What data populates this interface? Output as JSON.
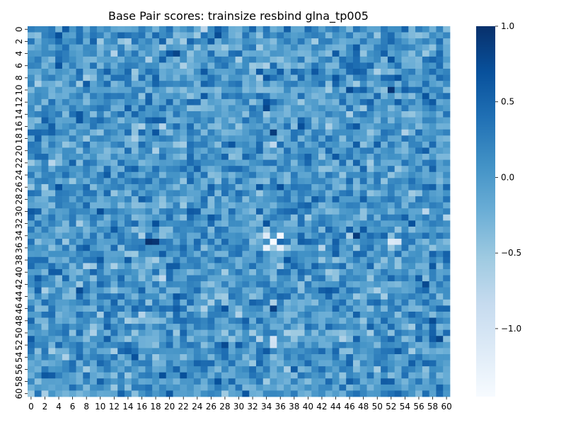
{
  "chart_data": {
    "type": "heatmap",
    "title": "Base Pair scores: trainsize resbind glna_tp005",
    "n": 61,
    "x_tick_labels": [
      "0",
      "2",
      "4",
      "6",
      "8",
      "10",
      "12",
      "14",
      "16",
      "18",
      "20",
      "22",
      "24",
      "26",
      "28",
      "30",
      "32",
      "34",
      "36",
      "38",
      "40",
      "42",
      "44",
      "46",
      "48",
      "50",
      "52",
      "54",
      "56",
      "58",
      "60"
    ],
    "y_tick_labels": [
      "0",
      "2",
      "4",
      "6",
      "8",
      "10",
      "12",
      "14",
      "16",
      "18",
      "20",
      "22",
      "24",
      "26",
      "28",
      "30",
      "32",
      "34",
      "36",
      "38",
      "40",
      "42",
      "44",
      "46",
      "48",
      "50",
      "52",
      "54",
      "56",
      "58",
      "60"
    ],
    "colorbar": {
      "min": -1.45,
      "max": 1.0,
      "ticks": [
        {
          "value": 1.0,
          "label": "1.0"
        },
        {
          "value": 0.5,
          "label": "0.5"
        },
        {
          "value": 0.0,
          "label": "0.0"
        },
        {
          "value": -0.5,
          "label": "−0.5"
        },
        {
          "value": -1.0,
          "label": "−1.0"
        }
      ]
    },
    "colormap": [
      "#f7fbff",
      "#deebf7",
      "#c6dbef",
      "#9ecae1",
      "#6baed6",
      "#4292c6",
      "#2171b5",
      "#08519c",
      "#08306b"
    ],
    "baseline": 0.02,
    "features": [
      {
        "row": 35,
        "col": 35,
        "value": -1.45
      },
      {
        "row": 34,
        "col": 36,
        "value": -1.4
      },
      {
        "row": 36,
        "col": 34,
        "value": -1.3
      },
      {
        "row": 36,
        "col": 36,
        "value": -1.2
      },
      {
        "row": 34,
        "col": 34,
        "value": -1.15
      },
      {
        "row": 35,
        "col": 52,
        "value": -1.1
      },
      {
        "row": 35,
        "col": 53,
        "value": -1.05
      },
      {
        "row": 51,
        "col": 35,
        "value": -1.0
      },
      {
        "row": 52,
        "col": 35,
        "value": -0.95
      },
      {
        "row": 35,
        "col": 17,
        "value": 1.0
      },
      {
        "row": 35,
        "col": 18,
        "value": 0.95
      },
      {
        "row": 10,
        "col": 52,
        "value": 0.95
      },
      {
        "row": 17,
        "col": 35,
        "value": 0.9
      },
      {
        "row": 34,
        "col": 47,
        "value": 0.9
      },
      {
        "row": 46,
        "col": 35,
        "value": 0.85
      }
    ]
  }
}
